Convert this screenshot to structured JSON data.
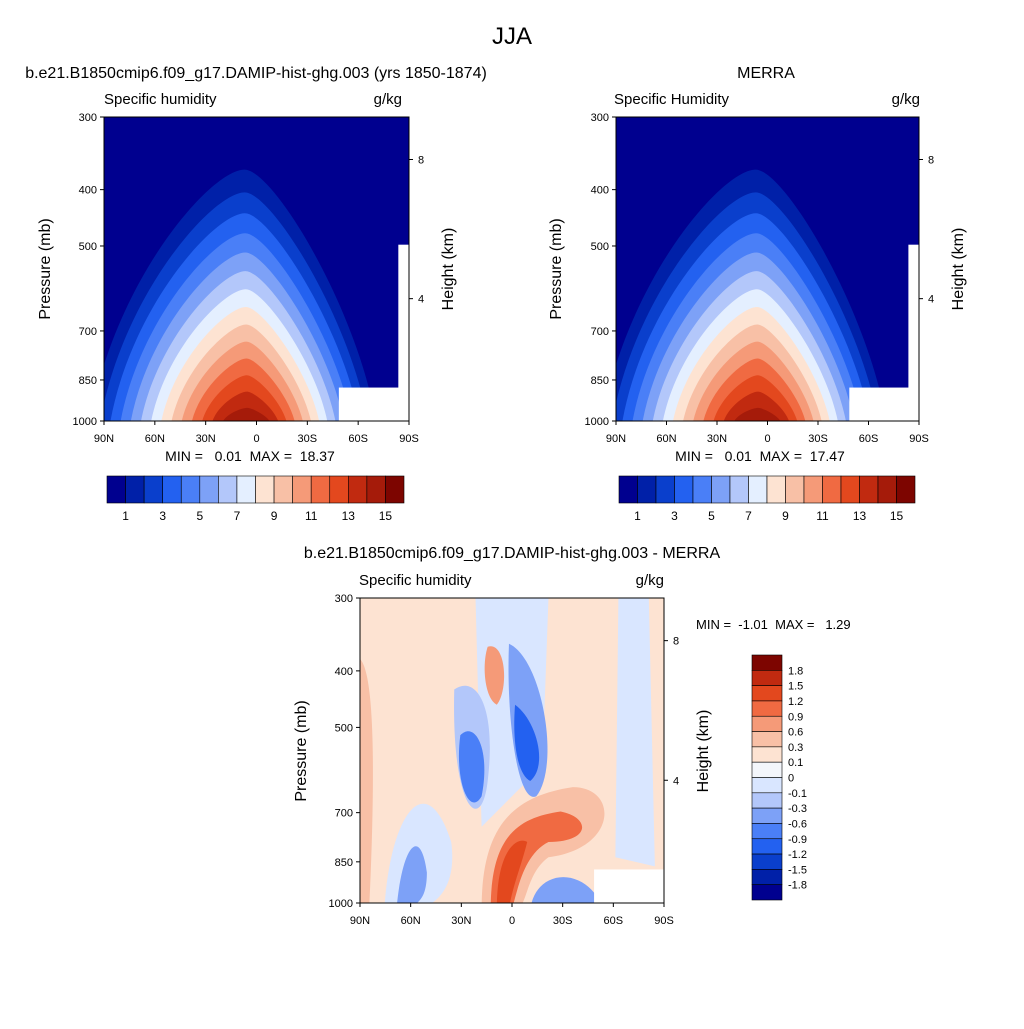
{
  "page_title": "JJA",
  "colors": {
    "abs_scale": [
      "#00008f",
      "#0020a8",
      "#0a3fcc",
      "#2361f0",
      "#4a7ff7",
      "#7da1f7",
      "#b3c7fa",
      "#e4efff",
      "#fde3d2",
      "#f8c0a6",
      "#f59a78",
      "#f06a42",
      "#e3481e",
      "#c12a10",
      "#a51b0a",
      "#7d0500"
    ],
    "diff_scale": [
      "#00008f",
      "#0020a8",
      "#0a3fcc",
      "#2361f0",
      "#4a7ff7",
      "#7da1f7",
      "#b3c7fa",
      "#d9e6ff",
      "#f3f6fb",
      "#fde3d2",
      "#f8c0a6",
      "#f59a78",
      "#f06a42",
      "#e3481e",
      "#c12a10",
      "#7d0500"
    ]
  },
  "chart_data": [
    {
      "type": "heatmap",
      "panel": "left",
      "title": "b.e21.B1850cmip6.f09_g17.DAMIP-hist-ghg.003 (yrs 1850-1874)",
      "variable": "Specific humidity",
      "units": "g/kg",
      "ylabel": "Pressure (mb)",
      "y2label": "Height (km)",
      "x_ticks": [
        "90N",
        "60N",
        "30N",
        "0",
        "30S",
        "60S",
        "90S"
      ],
      "y_ticks": [
        "300",
        "400",
        "500",
        "700",
        "850",
        "1000"
      ],
      "y2_ticks": [
        "8",
        "4"
      ],
      "ylim": [
        1000,
        300
      ],
      "stats_text": "MIN =   0.01  MAX =  18.37",
      "min": 0.01,
      "max": 18.37,
      "colorbar_labels": [
        "1",
        "3",
        "5",
        "7",
        "9",
        "11",
        "13",
        "15"
      ]
    },
    {
      "type": "heatmap",
      "panel": "right",
      "title": "MERRA",
      "variable": "Specific Humidity",
      "units": "g/kg",
      "ylabel": "Pressure (mb)",
      "y2label": "Height (km)",
      "x_ticks": [
        "90N",
        "60N",
        "30N",
        "0",
        "30S",
        "60S",
        "90S"
      ],
      "y_ticks": [
        "300",
        "400",
        "500",
        "700",
        "850",
        "1000"
      ],
      "y2_ticks": [
        "8",
        "4"
      ],
      "ylim": [
        1000,
        300
      ],
      "stats_text": "MIN =   0.01  MAX =  17.47",
      "min": 0.01,
      "max": 17.47,
      "colorbar_labels": [
        "1",
        "3",
        "5",
        "7",
        "9",
        "11",
        "13",
        "15"
      ]
    },
    {
      "type": "heatmap",
      "panel": "diff",
      "title": "b.e21.B1850cmip6.f09_g17.DAMIP-hist-ghg.003 - MERRA",
      "variable": "Specific humidity",
      "units": "g/kg",
      "ylabel": "Pressure (mb)",
      "y2label": "Height (km)",
      "x_ticks": [
        "90N",
        "60N",
        "30N",
        "0",
        "30S",
        "60S",
        "90S"
      ],
      "y_ticks": [
        "300",
        "400",
        "500",
        "700",
        "850",
        "1000"
      ],
      "y2_ticks": [
        "8",
        "4"
      ],
      "ylim": [
        1000,
        300
      ],
      "stats_text": "MIN =  -1.01  MAX =   1.29",
      "min": -1.01,
      "max": 1.29,
      "colorbar_labels": [
        "1.8",
        "1.5",
        "1.2",
        "0.9",
        "0.6",
        "0.3",
        "0.1",
        "0",
        "-0.1",
        "-0.3",
        "-0.6",
        "-0.9",
        "-1.2",
        "-1.5",
        "-1.8"
      ]
    }
  ]
}
